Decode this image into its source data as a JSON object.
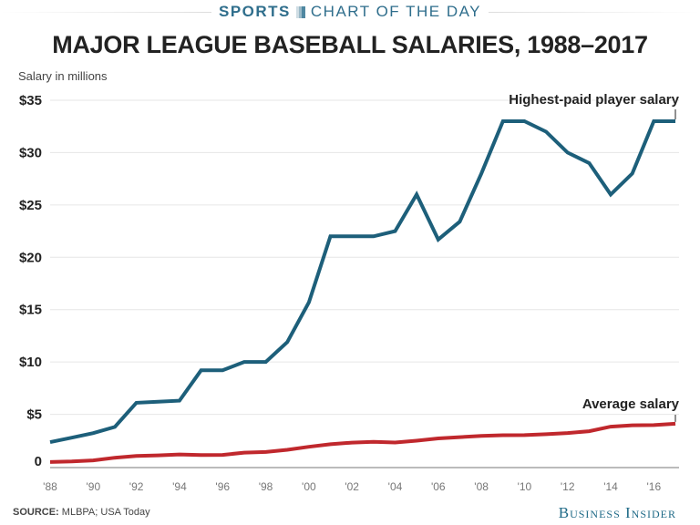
{
  "header": {
    "section": "SPORTS",
    "series": "CHART OF THE DAY"
  },
  "footer": {
    "source_label": "SOURCE:",
    "source_text": "MLBPA; USA Today",
    "brand": "Business Insider"
  },
  "chart_data": {
    "type": "line",
    "title": "MAJOR LEAGUE BASEBALL SALARIES, 1988–2017",
    "ylabel": "Salary in millions",
    "xlabel": "",
    "ylim": [
      0,
      35
    ],
    "xlim": [
      1988,
      2017
    ],
    "grid": true,
    "yticks": [
      {
        "v": 0,
        "label": "0"
      },
      {
        "v": 5,
        "label": "$5"
      },
      {
        "v": 10,
        "label": "$10"
      },
      {
        "v": 15,
        "label": "$15"
      },
      {
        "v": 20,
        "label": "$20"
      },
      {
        "v": 25,
        "label": "$25"
      },
      {
        "v": 30,
        "label": "$30"
      },
      {
        "v": 35,
        "label": "$35"
      }
    ],
    "xticks": [
      {
        "v": 1988,
        "label": "'88"
      },
      {
        "v": 1990,
        "label": "'90"
      },
      {
        "v": 1992,
        "label": "'92"
      },
      {
        "v": 1994,
        "label": "'94"
      },
      {
        "v": 1996,
        "label": "'96"
      },
      {
        "v": 1998,
        "label": "'98"
      },
      {
        "v": 2000,
        "label": "'00"
      },
      {
        "v": 2002,
        "label": "'02"
      },
      {
        "v": 2004,
        "label": "'04"
      },
      {
        "v": 2006,
        "label": "'06"
      },
      {
        "v": 2008,
        "label": "'08"
      },
      {
        "v": 2010,
        "label": "'10"
      },
      {
        "v": 2012,
        "label": "'12"
      },
      {
        "v": 2014,
        "label": "'14"
      },
      {
        "v": 2016,
        "label": "'16"
      }
    ],
    "x": [
      1988,
      1989,
      1990,
      1991,
      1992,
      1993,
      1994,
      1995,
      1996,
      1997,
      1998,
      1999,
      2000,
      2001,
      2002,
      2003,
      2004,
      2005,
      2006,
      2007,
      2008,
      2009,
      2010,
      2011,
      2012,
      2013,
      2014,
      2015,
      2016,
      2017
    ],
    "series": [
      {
        "name": "Highest-paid player salary",
        "color": "#1d5f7a",
        "values": [
          2.34,
          2.77,
          3.2,
          3.8,
          6.1,
          6.2,
          6.3,
          9.2,
          9.2,
          10,
          10,
          11.9,
          15.7,
          22,
          22,
          22,
          22.5,
          26,
          21.7,
          23.4,
          28,
          33,
          33,
          32,
          30,
          29,
          26,
          28,
          33,
          33
        ]
      },
      {
        "name": "Average salary",
        "color": "#c0282d",
        "values": [
          0.44,
          0.5,
          0.6,
          0.85,
          1.03,
          1.08,
          1.17,
          1.11,
          1.12,
          1.34,
          1.4,
          1.61,
          1.9,
          2.14,
          2.3,
          2.37,
          2.31,
          2.48,
          2.7,
          2.82,
          2.93,
          3.0,
          3.01,
          3.1,
          3.21,
          3.39,
          3.82,
          3.95,
          3.97,
          4.1
        ]
      }
    ],
    "annotations": [
      "Highest-paid player salary",
      "Average salary"
    ]
  }
}
